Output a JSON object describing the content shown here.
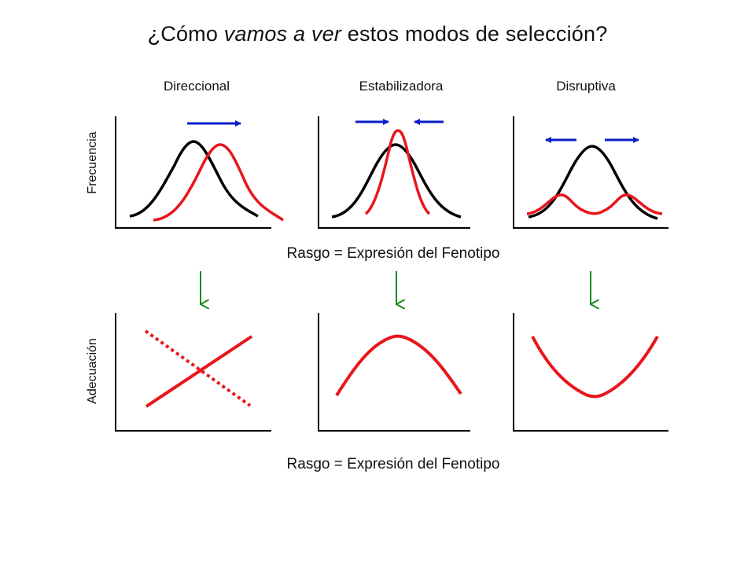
{
  "title": {
    "prefix": "¿Cómo ",
    "italic": "vamos a ver",
    "suffix": " estos modos de selección?"
  },
  "columns": [
    {
      "label": "Direccional"
    },
    {
      "label": "Estabilizadora"
    },
    {
      "label": "Disruptiva"
    }
  ],
  "axis_labels": {
    "frecuencia": "Frecuencia",
    "adecuacion": "Adecuación",
    "rasgo_top": "Rasgo = Expresión del Fenotipo",
    "rasgo_bottom": "Rasgo = Expresión del Fenotipo"
  },
  "colors": {
    "original_curve": "#000000",
    "selected_curve": "#e8161b",
    "arrow_blue": "#0a1ec8",
    "arrow_green": "#1a8a1a",
    "axis": "#000000"
  }
}
